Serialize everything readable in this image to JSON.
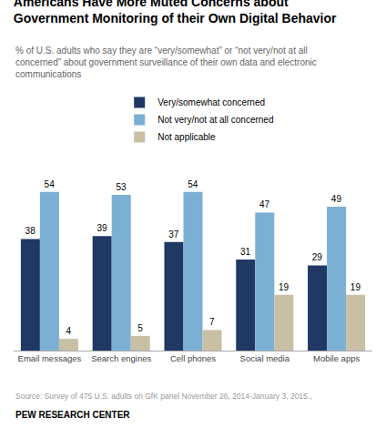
{
  "chart_data": {
    "type": "bar",
    "title": "Americans Have More Muted Concerns about\nGovernment Monitoring of their Own Digital Behavior",
    "subtitle": "% of U.S. adults who say they are “very/somewhat” or “not very/not at all\nconcerned” about government surveillance of their own data and electronic\ncommunications",
    "categories": [
      "Email messages",
      "Search engines",
      "Cell phones",
      "Social media",
      "Mobile apps"
    ],
    "series": [
      {
        "name": "Very/somewhat concerned",
        "color": "#1f3864",
        "values": [
          38,
          39,
          37,
          31,
          29
        ]
      },
      {
        "name": "Not very/not at all concerned",
        "color": "#7bafd4",
        "values": [
          54,
          53,
          54,
          47,
          49
        ]
      },
      {
        "name": "Not applicable",
        "color": "#c9bfa5",
        "values": [
          4,
          5,
          7,
          19,
          19
        ]
      }
    ],
    "ylim": [
      0,
      62
    ],
    "grid": false,
    "legend": "top",
    "data_labels": true,
    "tick_labels": "x",
    "annotations": [
      "Source: Survey of 475 U.S. adults on GfK panel November 26, 2014-January 3, 2015.,",
      "PEW RESEARCH CENTER"
    ]
  }
}
